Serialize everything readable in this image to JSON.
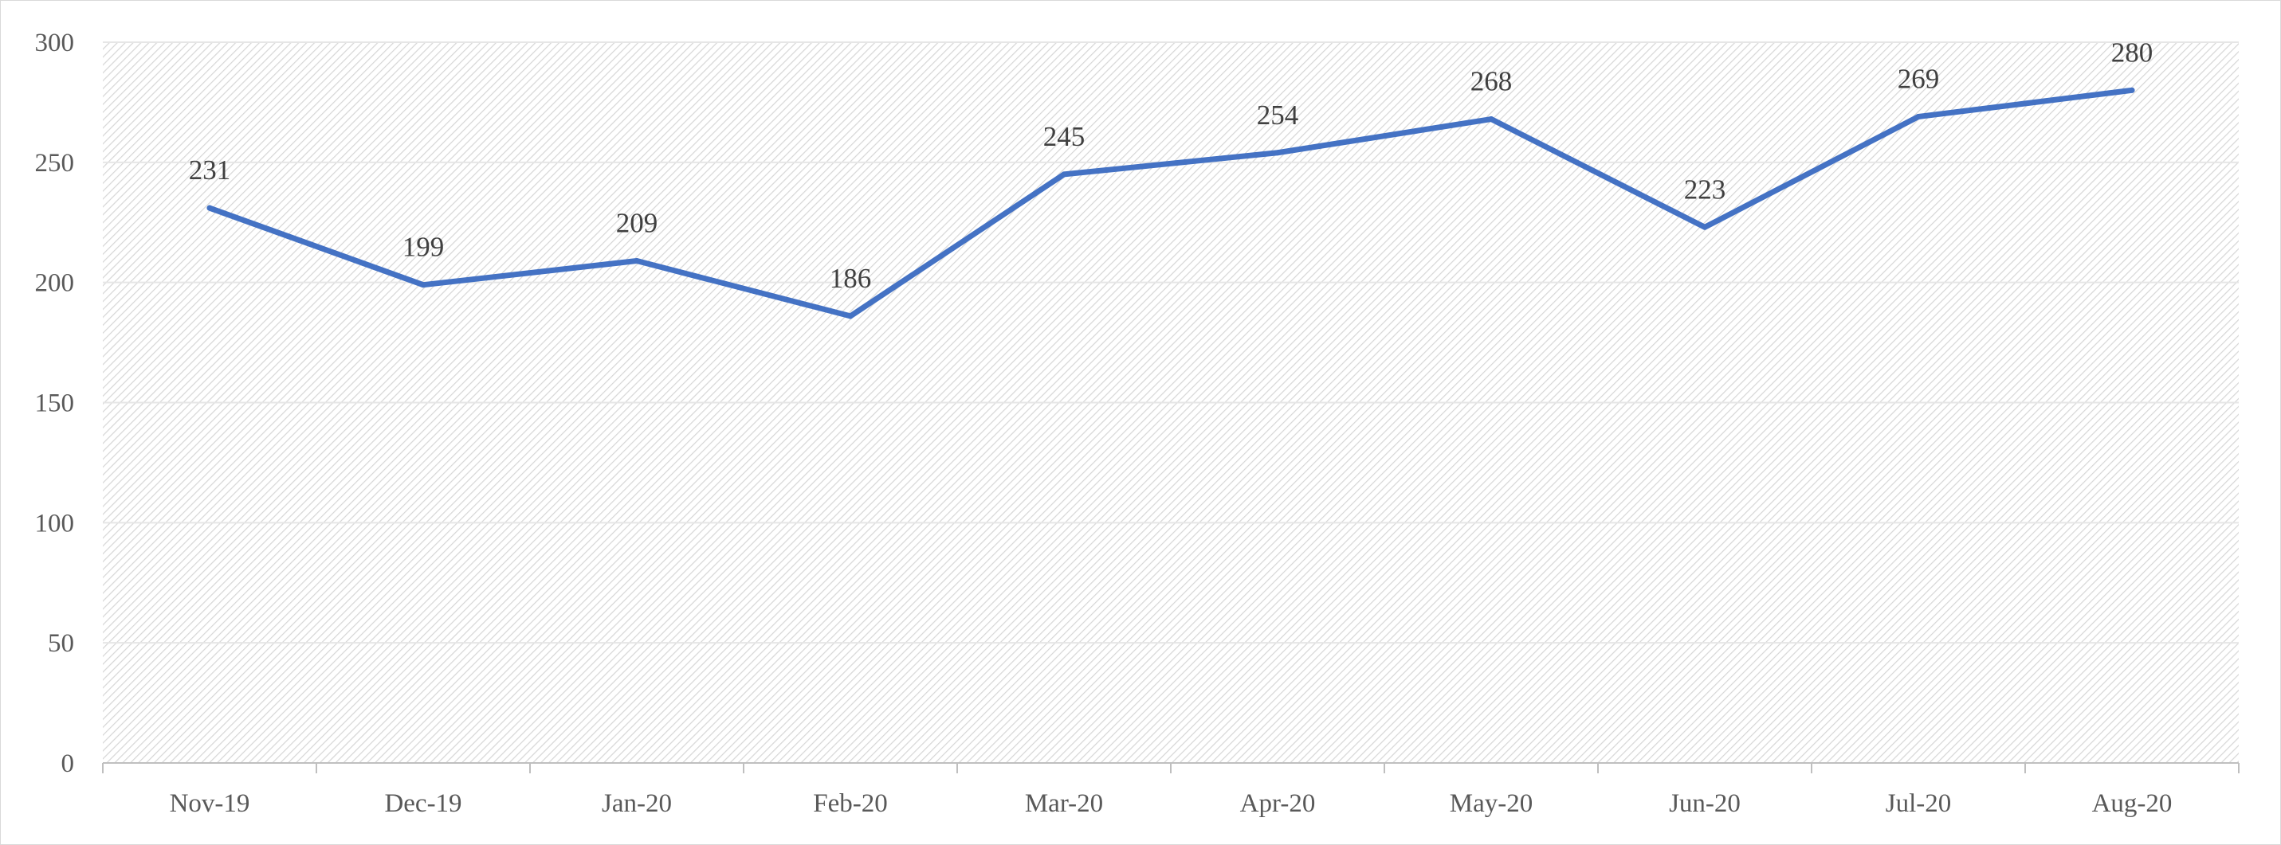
{
  "chart_data": {
    "type": "line",
    "title": "",
    "xlabel": "",
    "ylabel": "",
    "categories": [
      "Nov-19",
      "Dec-19",
      "Jan-20",
      "Feb-20",
      "Mar-20",
      "Apr-20",
      "May-20",
      "Jun-20",
      "Jul-20",
      "Aug-20"
    ],
    "series": [
      {
        "values": [
          231,
          199,
          209,
          186,
          245,
          254,
          268,
          223,
          269,
          280
        ]
      }
    ],
    "ylim": [
      0,
      300
    ],
    "yticks": [
      "0",
      "50",
      "100",
      "150",
      "200",
      "250",
      "300"
    ],
    "data_labels": true,
    "grid": true,
    "legend": "none",
    "colors": {
      "line": "#4472C4",
      "plot_hatch": "#d9d9d9",
      "gridline": "#e6e6e6",
      "axis": "#bfbfbf"
    }
  }
}
